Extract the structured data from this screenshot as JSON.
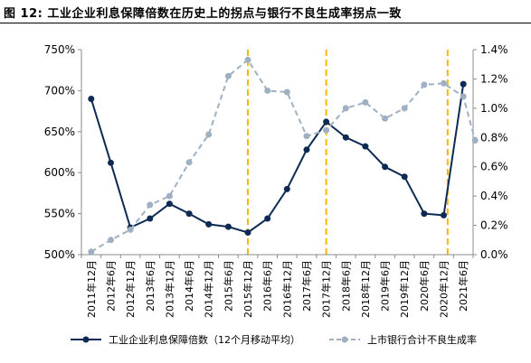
{
  "figure": {
    "title": "图 12: 工业企业利息保障倍数在历史上的拐点与银行不良生成率拐点一致"
  },
  "colors": {
    "series1": "#0d2a52",
    "series2": "#9fb0c2",
    "marker_line": "#f5b800",
    "axis": "#8c8c8c"
  },
  "chart_data": {
    "type": "line",
    "title": "工业企业利息保障倍数在历史上的拐点与银行不良生成率拐点一致",
    "categories": [
      "2011年12月",
      "2012年6月",
      "2012年12月",
      "2013年6月",
      "2013年12月",
      "2014年6月",
      "2014年12月",
      "2015年6月",
      "2015年12月",
      "2016年6月",
      "2016年12月",
      "2017年6月",
      "2017年12月",
      "2018年6月",
      "2018年12月",
      "2019年6月",
      "2019年12月",
      "2020年6月",
      "2020年12月",
      "2021年6月"
    ],
    "left_axis": {
      "ylim": [
        500,
        750
      ],
      "ticks": [
        500,
        550,
        600,
        650,
        700,
        750
      ],
      "tick_labels": [
        "500%",
        "550%",
        "600%",
        "650%",
        "700%",
        "750%"
      ]
    },
    "right_axis": {
      "ylim": [
        0,
        1.4
      ],
      "ticks": [
        0,
        0.2,
        0.4,
        0.6,
        0.8,
        1.0,
        1.2,
        1.4
      ],
      "tick_labels": [
        "0.0%",
        "0.2%",
        "0.4%",
        "0.6%",
        "0.8%",
        "1.0%",
        "1.2%",
        "1.4%"
      ]
    },
    "series": [
      {
        "name": "工业企业利息保障倍数（12个月移动平均）",
        "axis": "left",
        "style": "solid-dot",
        "x": [
          0,
          1,
          2,
          3,
          4,
          5,
          6,
          7,
          8,
          9,
          10,
          11,
          12,
          13,
          14,
          15,
          16,
          17,
          18,
          19
        ],
        "values": [
          690,
          612,
          533,
          544,
          562,
          550,
          537,
          534,
          527,
          544,
          580,
          628,
          662,
          643,
          632,
          607,
          595,
          550,
          548,
          708
        ]
      },
      {
        "name": "上市银行合计不良生成率",
        "axis": "right",
        "style": "dashed-dot",
        "x": [
          0,
          1,
          2,
          3,
          4,
          5,
          6,
          7,
          8,
          9,
          10,
          11,
          12,
          13,
          14,
          15,
          16,
          17,
          18,
          19,
          19.6
        ],
        "values": [
          0.02,
          0.1,
          0.17,
          0.34,
          0.4,
          0.63,
          0.82,
          1.22,
          1.33,
          1.12,
          1.11,
          0.81,
          0.85,
          1.0,
          1.04,
          0.93,
          1.0,
          1.16,
          1.17,
          1.08,
          0.78
        ]
      }
    ],
    "vertical_markers": [
      8,
      12,
      18.2
    ],
    "grid": false,
    "legend_position": "bottom"
  }
}
